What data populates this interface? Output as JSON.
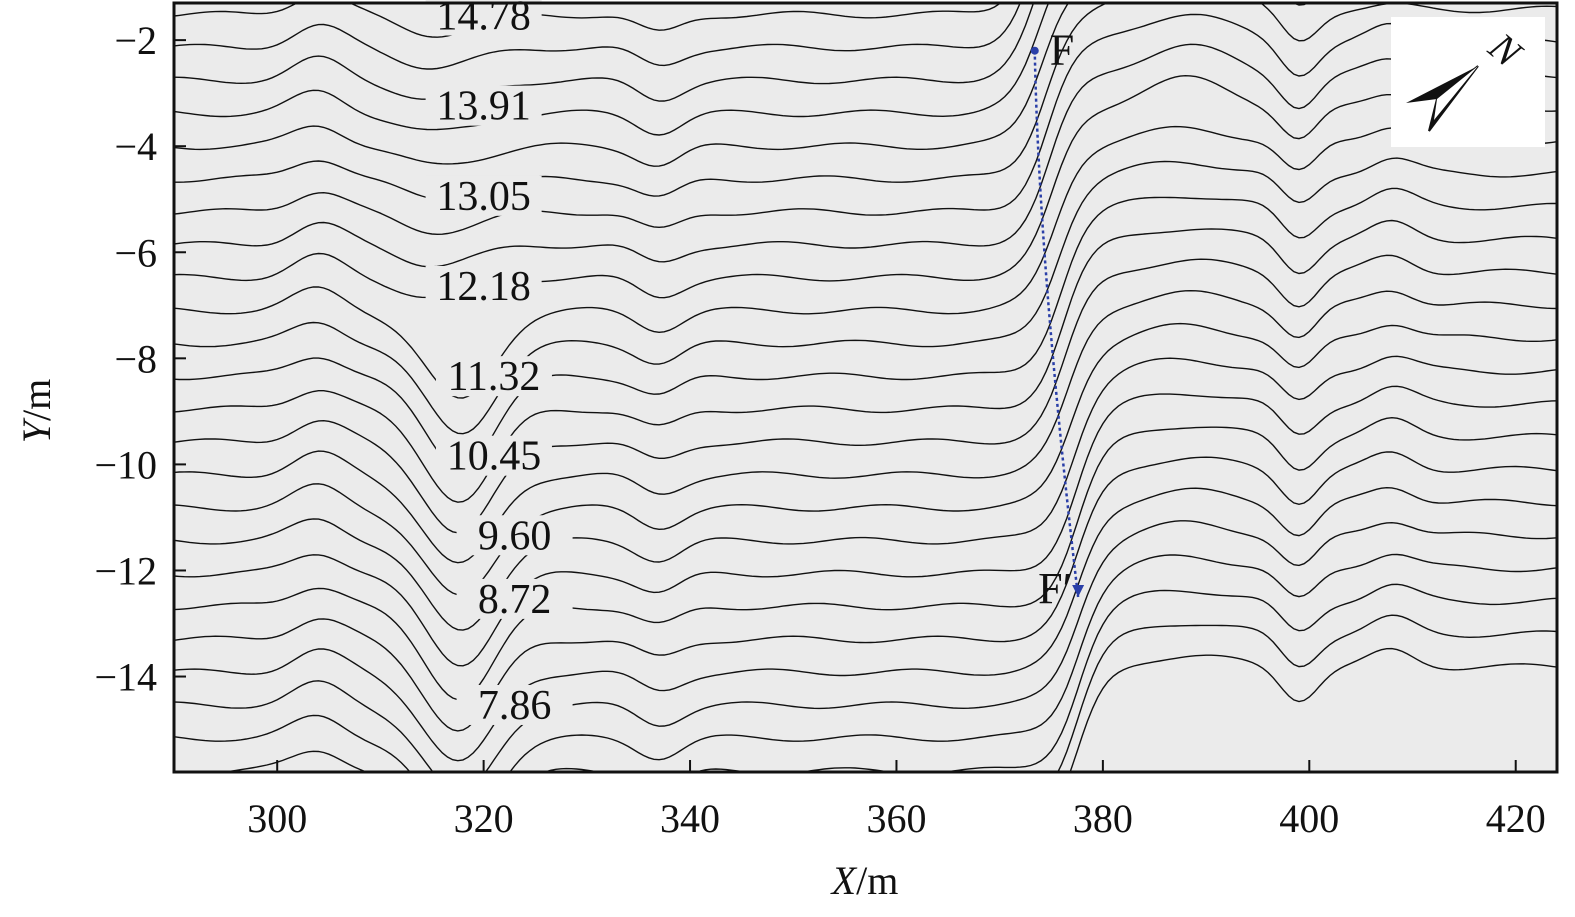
{
  "chart_data": {
    "type": "contour",
    "xlabel": "X/m",
    "ylabel": "Y/m",
    "xlim": [
      290,
      424
    ],
    "ylim": [
      -15.8,
      -1.3
    ],
    "x_ticks": [
      300,
      320,
      340,
      360,
      380,
      400,
      420
    ],
    "y_ticks": [
      -2,
      -4,
      -6,
      -8,
      -10,
      -12,
      -14
    ],
    "contour_labels": [
      {
        "text": "14.78",
        "x": 320,
        "y": -1.8
      },
      {
        "text": "13.91",
        "x": 320,
        "y": -3.5
      },
      {
        "text": "13.05",
        "x": 320,
        "y": -5.2
      },
      {
        "text": "12.18",
        "x": 320,
        "y": -6.9
      },
      {
        "text": "11.32",
        "x": 321,
        "y": -8.6
      },
      {
        "text": "10.45",
        "x": 321,
        "y": -10.1
      },
      {
        "text": "9.60",
        "x": 323,
        "y": -11.6
      },
      {
        "text": "8.72",
        "x": 323,
        "y": -12.8
      },
      {
        "text": "7.86",
        "x": 323,
        "y": -14.8
      }
    ],
    "fault_line": {
      "start": {
        "label": "F",
        "x": 373.4,
        "y": -2.2
      },
      "end": {
        "label": "F′",
        "x": 377.6,
        "y": -12.5
      },
      "color": "#2a3fa8"
    },
    "north_arrow": {
      "label": "N"
    },
    "plot_background": "#ebebeb",
    "grid": false
  }
}
